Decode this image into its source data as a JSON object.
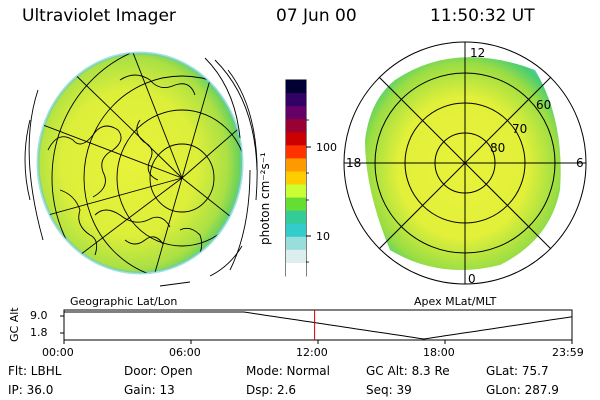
{
  "header": {
    "instrument": "Ultraviolet Imager",
    "date": "07 Jun 00",
    "time": "11:50:32 UT"
  },
  "colorbar": {
    "unit_label": "photon cm⁻²s⁻¹",
    "ticks": [
      "100",
      "10"
    ],
    "colors": [
      "#000033",
      "#330066",
      "#660066",
      "#990033",
      "#cc0000",
      "#ff3300",
      "#ff9900",
      "#ffcc00",
      "#ccff33",
      "#66dd33",
      "#33cc99",
      "#33cccc",
      "#99dddd",
      "#ddeeee",
      "#ffffff"
    ]
  },
  "geo_panel": {
    "label": "Geographic Lat/Lon"
  },
  "mag_panel": {
    "label": "Apex MLat/MLT",
    "mlt_labels": {
      "top": "12",
      "left": "18",
      "right": "6",
      "bottom": "0"
    },
    "lat_labels": [
      "60",
      "70",
      "80"
    ]
  },
  "timeline": {
    "ylabel": "GC Alt",
    "yticks": [
      "9.0",
      "1.8"
    ],
    "xticks": [
      "00:00",
      "06:00",
      "12:00",
      "18:00",
      "23:59"
    ],
    "current_hour": 11.84,
    "ylim": [
      1.8,
      9.0
    ]
  },
  "status": {
    "row1": {
      "flt": "Flt: LBHL",
      "door": "Door: Open",
      "mode": "Mode: Normal",
      "gcalt": "GC Alt: 8.3 Re",
      "glat": "GLat:  75.7"
    },
    "row2": {
      "ip": "IP: 36.0",
      "gain": "Gain: 13",
      "dsp": "Dsp:    2.6",
      "seq": "Seq: 39",
      "glon": "GLon: 287.9"
    }
  }
}
